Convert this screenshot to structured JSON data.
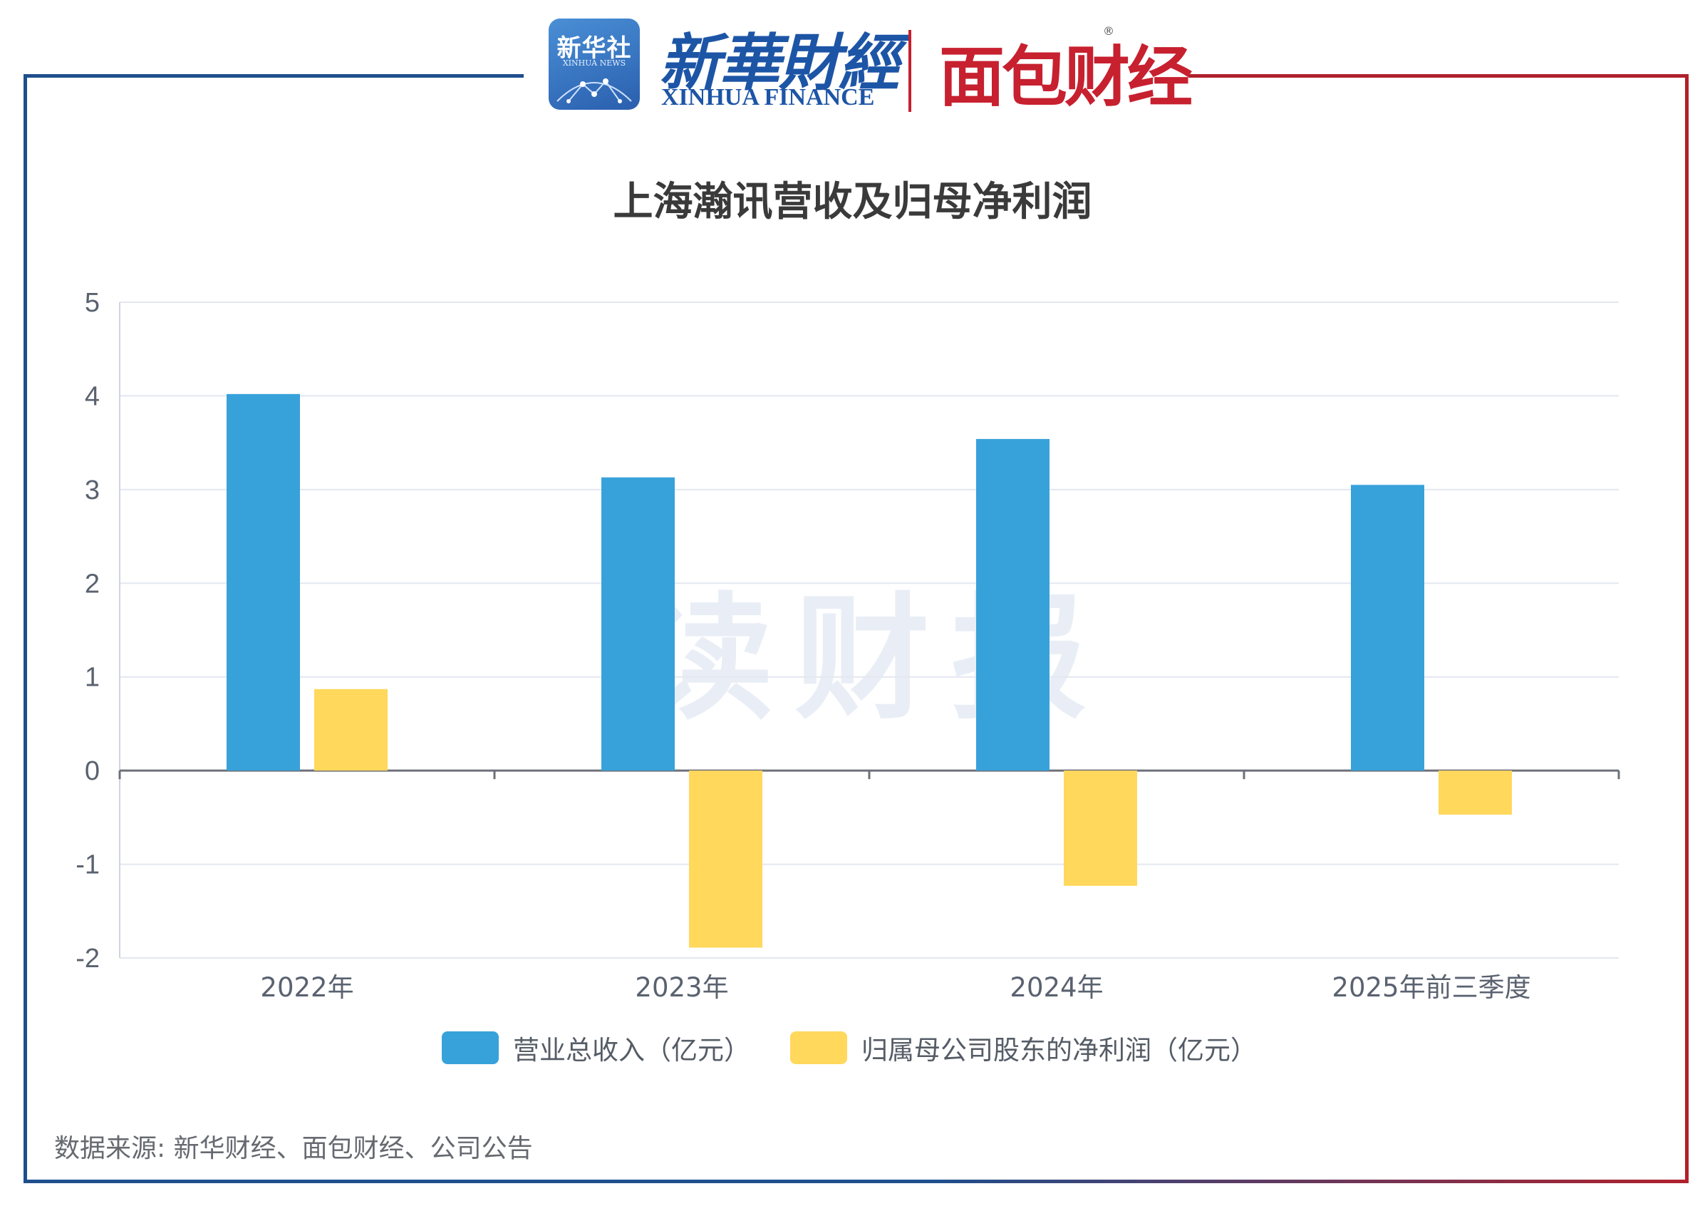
{
  "header": {
    "xinhua_badge_cn": "新华社",
    "xinhua_badge_en": "XINHUA NEWS",
    "xinhua_finance_cn": "新華財經",
    "xinhua_finance_en": "XINHUA FINANCE",
    "mianbao_logo": "面包财经",
    "registered_mark": "®"
  },
  "watermark": "读财报",
  "colors": {
    "frame_left": "#1f4e8c",
    "frame_right": "#b0212c",
    "revenue": "#37a2da",
    "net_profit": "#ffd85c"
  },
  "chart_data": {
    "type": "bar",
    "title": "上海瀚讯营收及归母净利润",
    "categories": [
      "2022年",
      "2023年",
      "2024年",
      "2025年前三季度"
    ],
    "series": [
      {
        "name": "营业总收入（亿元）",
        "values": [
          4.02,
          3.13,
          3.54,
          3.05
        ]
      },
      {
        "name": "归属母公司股东的净利润（亿元）",
        "values": [
          0.87,
          -1.89,
          -1.23,
          -0.47
        ]
      }
    ],
    "ylim": [
      -2,
      5
    ],
    "yticks": [
      5,
      4,
      3,
      2,
      1,
      0,
      -1,
      -2
    ],
    "grid": true,
    "legend_position": "bottom-center",
    "xlabel": "",
    "ylabel": ""
  },
  "source": "数据来源: 新华财经、面包财经、公司公告"
}
